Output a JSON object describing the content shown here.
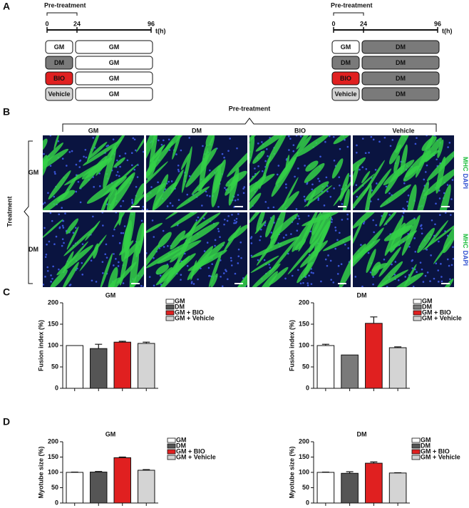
{
  "panel_a": {
    "label": "A",
    "timelines": [
      {
        "pretreatment_label": "Pre-treatment",
        "ticks": [
          "0",
          "24",
          "96"
        ],
        "axis_label": "t(h)",
        "rows": [
          [
            "GM",
            "GM"
          ],
          [
            "DM",
            "GM"
          ],
          [
            "BIO",
            "GM"
          ],
          [
            "Vehicle",
            "GM"
          ]
        ]
      },
      {
        "pretreatment_label": "Pre-treatment",
        "ticks": [
          "0",
          "24",
          "96"
        ],
        "axis_label": "t(h)",
        "rows": [
          [
            "GM",
            "DM"
          ],
          [
            "DM",
            "DM"
          ],
          [
            "BIO",
            "DM"
          ],
          [
            "Vehicle",
            "DM"
          ]
        ]
      }
    ]
  },
  "panel_b": {
    "label": "B",
    "pretreatment_label": "Pre-treatment",
    "columns": [
      "GM",
      "DM",
      "BIO",
      "Vehicle"
    ],
    "treatment_label": "Treatment",
    "rows": [
      "GM",
      "DM"
    ],
    "stain_labels": [
      [
        "MHC",
        "DAPI"
      ],
      [
        "MHC",
        "DAPI"
      ]
    ]
  },
  "panel_c_label": "C",
  "panel_d_label": "D",
  "chart_data": [
    {
      "type": "bar",
      "title": "GM",
      "y_label": "Fusion index (%)",
      "categories": [
        "GM",
        "DM",
        "GM + BIO",
        "GM + Vehicle"
      ],
      "values": [
        100,
        93,
        108,
        105
      ],
      "errors": [
        null,
        10,
        2,
        3
      ],
      "colors": [
        "#ffffff",
        "#555555",
        "#e02020",
        "#d4d4d4"
      ],
      "ylim": [
        0,
        200
      ],
      "yticks": [
        0,
        50,
        100,
        150,
        200
      ],
      "legend": "right"
    },
    {
      "type": "bar",
      "title": "DM",
      "y_label": "Fusion index (%)",
      "categories": [
        "GM",
        "DM",
        "GM + BIO",
        "GM + Vehicle"
      ],
      "values": [
        100,
        78,
        152,
        95
      ],
      "errors": [
        3,
        null,
        15,
        2
      ],
      "colors": [
        "#ffffff",
        "#7a7a7a",
        "#e02020",
        "#d4d4d4"
      ],
      "ylim": [
        0,
        200
      ],
      "yticks": [
        0,
        50,
        100,
        150,
        200
      ],
      "legend": "right"
    },
    {
      "type": "bar",
      "title": "GM",
      "y_label": "Myotube size (%)",
      "categories": [
        "GM",
        "DM",
        "GM + BIO",
        "GM + Vehicle"
      ],
      "values": [
        100,
        101,
        148,
        107
      ],
      "errors": [
        1,
        2,
        2,
        2
      ],
      "colors": [
        "#ffffff",
        "#555555",
        "#e02020",
        "#d4d4d4"
      ],
      "ylim": [
        0,
        200
      ],
      "yticks": [
        0,
        50,
        100,
        150,
        200
      ],
      "legend": "right"
    },
    {
      "type": "bar",
      "title": "DM",
      "y_label": "Myotube size (%)",
      "categories": [
        "GM",
        "DM",
        "GM + BIO",
        "GM + Vehicle"
      ],
      "values": [
        100,
        97,
        130,
        98
      ],
      "errors": [
        1,
        5,
        4,
        1
      ],
      "colors": [
        "#ffffff",
        "#555555",
        "#e02020",
        "#d4d4d4"
      ],
      "ylim": [
        0,
        200
      ],
      "yticks": [
        0,
        50,
        100,
        150,
        200
      ],
      "legend": "right"
    }
  ]
}
